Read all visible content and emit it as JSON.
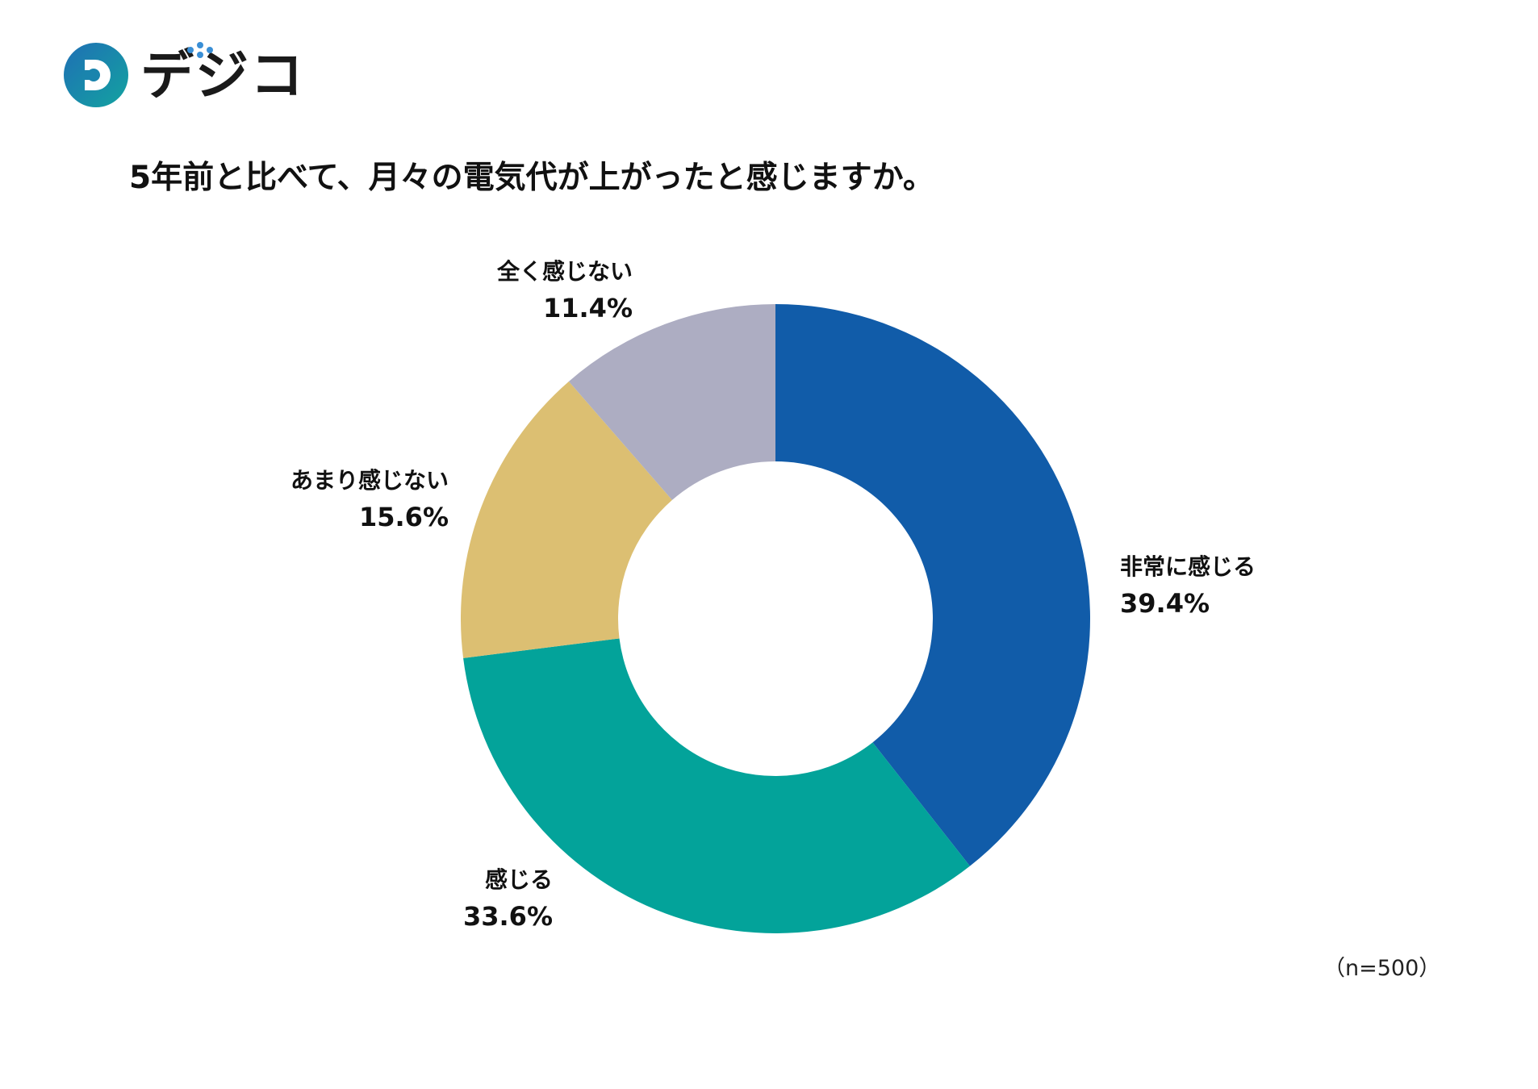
{
  "brand": {
    "name": "デジコ",
    "colors": {
      "mark_gradient_start": "#1f6fb5",
      "mark_gradient_end": "#13a3a0",
      "dots": "#3a8fd6"
    }
  },
  "chart_data": {
    "type": "pie",
    "variant": "donut",
    "title": "5年前と比べて、月々の電気代が上がったと感じますか。",
    "note": "（n=500）",
    "slices": [
      {
        "label": "非常に感じる",
        "value": 39.4,
        "value_label": "39.4%",
        "color": "#115ca9"
      },
      {
        "label": "感じる",
        "value": 33.6,
        "value_label": "33.6%",
        "color": "#03a39a"
      },
      {
        "label": "あまり感じない",
        "value": 15.6,
        "value_label": "15.6%",
        "color": "#dcbf72"
      },
      {
        "label": "全く感じない",
        "value": 11.4,
        "value_label": "11.4%",
        "color": "#adadc2"
      }
    ],
    "start": "top",
    "direction": "clockwise",
    "legend": "none",
    "labels": "outside"
  }
}
